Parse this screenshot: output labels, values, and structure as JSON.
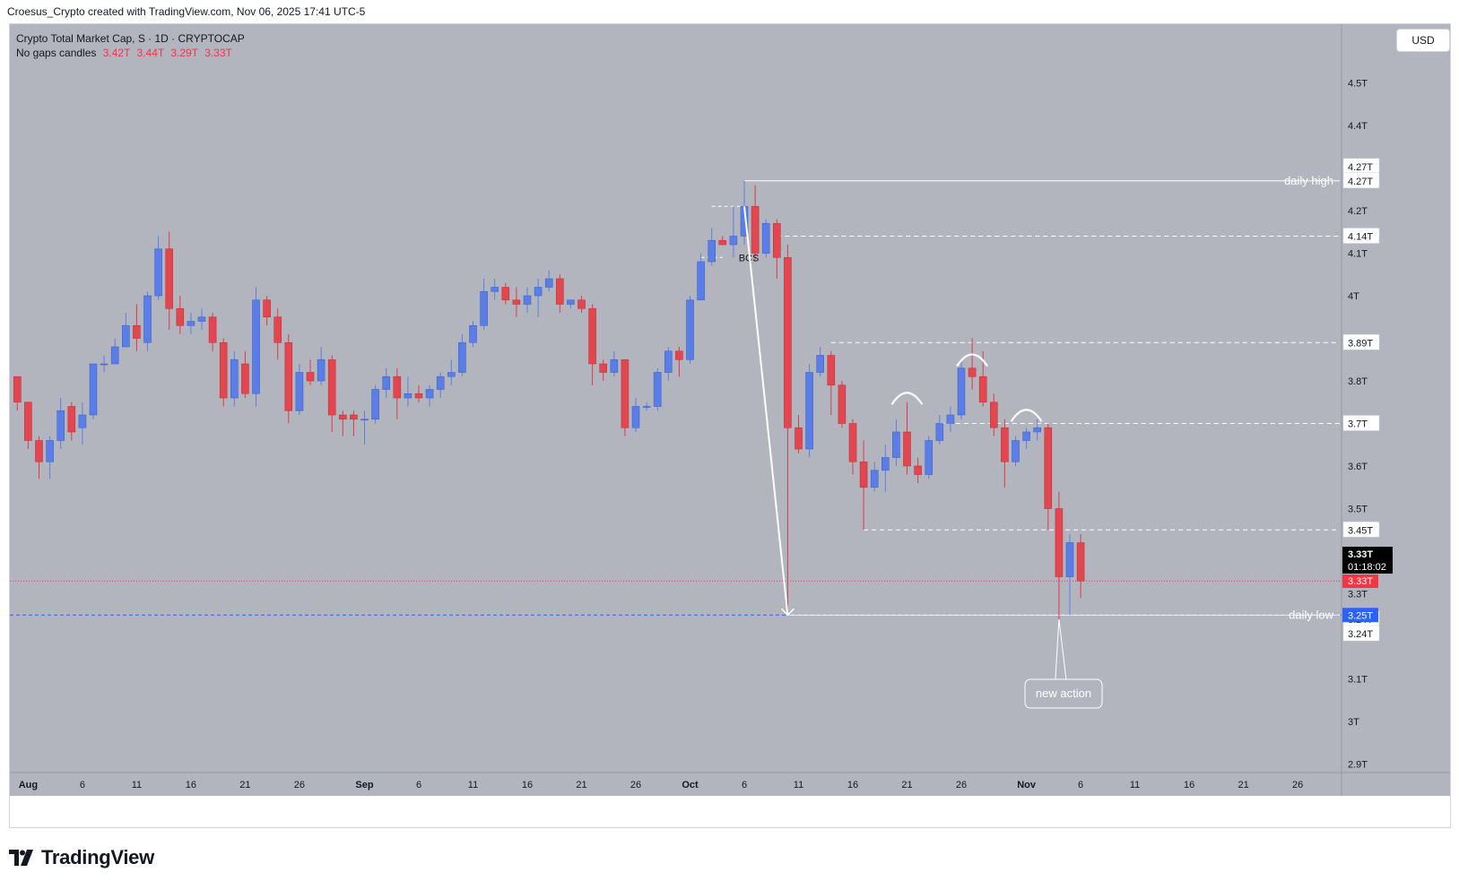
{
  "header": {
    "attribution": "Croesus_Crypto created with TradingView.com, Nov 06, 2025 17:41 UTC-5"
  },
  "symbol": {
    "title": "Crypto Total Market Cap, S · 1D · CRYPTOCAP",
    "indicator_name": "No gaps candles",
    "ohlc": [
      "3.42T",
      "3.44T",
      "3.29T",
      "3.33T"
    ]
  },
  "currency": "USD",
  "branding": "TradingView",
  "price_badges": {
    "last_price": "3.33T",
    "countdown": "01:18:02",
    "prev_close": "3.33T",
    "low_line": "3.25T"
  },
  "colors": {
    "background": "#b2b5be",
    "bullish": "#5b7ee6",
    "bearish": "#e2474f",
    "wick": "#e03a44",
    "annotation": "#ffffff",
    "last_price_badge": "#000000",
    "prev_close_badge": "#f23645",
    "low_line_badge": "#2962ff",
    "low_line": "#2962ff",
    "prev_close_line": "#f23645"
  },
  "chart_data": {
    "type": "candlestick",
    "title": "Crypto Total Market Cap, S · 1D · CRYPTOCAP",
    "unit": "T",
    "x_tick_labels": [
      "Aug",
      "6",
      "11",
      "16",
      "21",
      "26",
      "Sep",
      "6",
      "11",
      "16",
      "21",
      "26",
      "Oct",
      "6",
      "11",
      "16",
      "21",
      "26",
      "Nov",
      "6",
      "11",
      "16",
      "21",
      "26"
    ],
    "y_tick_labels": [
      "4.5T",
      "4.4T",
      "4.27T",
      "4.27T",
      "4.2T",
      "4.14T",
      "4.1T",
      "4T",
      "3.89T",
      "3.8T",
      "3.7T",
      "3.6T",
      "3.5T",
      "3.45T",
      "3.3T",
      "3.24T",
      "3.24T",
      "3.1T",
      "3T",
      "2.9T"
    ],
    "ylim": [
      2.89,
      4.62
    ],
    "candles": [
      {
        "date": "2025-07-31",
        "o": 3.81,
        "h": 3.81,
        "l": 3.73,
        "c": 3.75
      },
      {
        "date": "2025-08-01",
        "o": 3.75,
        "h": 3.75,
        "l": 3.64,
        "c": 3.66
      },
      {
        "date": "2025-08-02",
        "o": 3.66,
        "h": 3.67,
        "l": 3.57,
        "c": 3.61
      },
      {
        "date": "2025-08-03",
        "o": 3.61,
        "h": 3.67,
        "l": 3.57,
        "c": 3.66
      },
      {
        "date": "2025-08-04",
        "o": 3.66,
        "h": 3.76,
        "l": 3.64,
        "c": 3.73
      },
      {
        "date": "2025-08-05",
        "o": 3.74,
        "h": 3.75,
        "l": 3.66,
        "c": 3.68
      },
      {
        "date": "2025-08-06",
        "o": 3.69,
        "h": 3.75,
        "l": 3.65,
        "c": 3.72
      },
      {
        "date": "2025-08-07",
        "o": 3.72,
        "h": 3.84,
        "l": 3.71,
        "c": 3.84
      },
      {
        "date": "2025-08-08",
        "o": 3.84,
        "h": 3.86,
        "l": 3.82,
        "c": 3.84
      },
      {
        "date": "2025-08-09",
        "o": 3.84,
        "h": 3.9,
        "l": 3.84,
        "c": 3.88
      },
      {
        "date": "2025-08-10",
        "o": 3.88,
        "h": 3.96,
        "l": 3.88,
        "c": 3.93
      },
      {
        "date": "2025-08-11",
        "o": 3.93,
        "h": 3.98,
        "l": 3.87,
        "c": 3.9
      },
      {
        "date": "2025-08-12",
        "o": 3.89,
        "h": 4.01,
        "l": 3.87,
        "c": 4.0
      },
      {
        "date": "2025-08-13",
        "o": 4.0,
        "h": 4.14,
        "l": 3.99,
        "c": 4.11
      },
      {
        "date": "2025-08-14",
        "o": 4.11,
        "h": 4.15,
        "l": 3.92,
        "c": 3.97
      },
      {
        "date": "2025-08-15",
        "o": 3.97,
        "h": 4.0,
        "l": 3.91,
        "c": 3.93
      },
      {
        "date": "2025-08-16",
        "o": 3.93,
        "h": 3.96,
        "l": 3.91,
        "c": 3.94
      },
      {
        "date": "2025-08-17",
        "o": 3.94,
        "h": 3.97,
        "l": 3.92,
        "c": 3.95
      },
      {
        "date": "2025-08-18",
        "o": 3.95,
        "h": 3.96,
        "l": 3.87,
        "c": 3.89
      },
      {
        "date": "2025-08-19",
        "o": 3.89,
        "h": 3.9,
        "l": 3.74,
        "c": 3.76
      },
      {
        "date": "2025-08-20",
        "o": 3.76,
        "h": 3.87,
        "l": 3.74,
        "c": 3.85
      },
      {
        "date": "2025-08-21",
        "o": 3.84,
        "h": 3.87,
        "l": 3.76,
        "c": 3.77
      },
      {
        "date": "2025-08-22",
        "o": 3.77,
        "h": 4.02,
        "l": 3.74,
        "c": 3.99
      },
      {
        "date": "2025-08-23",
        "o": 3.99,
        "h": 4.0,
        "l": 3.93,
        "c": 3.95
      },
      {
        "date": "2025-08-24",
        "o": 3.95,
        "h": 3.97,
        "l": 3.85,
        "c": 3.89
      },
      {
        "date": "2025-08-25",
        "o": 3.89,
        "h": 3.91,
        "l": 3.7,
        "c": 3.73
      },
      {
        "date": "2025-08-26",
        "o": 3.73,
        "h": 3.84,
        "l": 3.72,
        "c": 3.82
      },
      {
        "date": "2025-08-27",
        "o": 3.82,
        "h": 3.85,
        "l": 3.79,
        "c": 3.8
      },
      {
        "date": "2025-08-28",
        "o": 3.8,
        "h": 3.88,
        "l": 3.79,
        "c": 3.85
      },
      {
        "date": "2025-08-29",
        "o": 3.85,
        "h": 3.86,
        "l": 3.68,
        "c": 3.72
      },
      {
        "date": "2025-08-30",
        "o": 3.72,
        "h": 3.73,
        "l": 3.67,
        "c": 3.71
      },
      {
        "date": "2025-08-31",
        "o": 3.72,
        "h": 3.73,
        "l": 3.67,
        "c": 3.71
      },
      {
        "date": "2025-09-01",
        "o": 3.71,
        "h": 3.73,
        "l": 3.65,
        "c": 3.71
      },
      {
        "date": "2025-09-02",
        "o": 3.71,
        "h": 3.79,
        "l": 3.7,
        "c": 3.78
      },
      {
        "date": "2025-09-03",
        "o": 3.78,
        "h": 3.83,
        "l": 3.76,
        "c": 3.81
      },
      {
        "date": "2025-09-04",
        "o": 3.81,
        "h": 3.83,
        "l": 3.71,
        "c": 3.76
      },
      {
        "date": "2025-09-05",
        "o": 3.76,
        "h": 3.81,
        "l": 3.74,
        "c": 3.77
      },
      {
        "date": "2025-09-06",
        "o": 3.77,
        "h": 3.79,
        "l": 3.75,
        "c": 3.76
      },
      {
        "date": "2025-09-07",
        "o": 3.76,
        "h": 3.79,
        "l": 3.74,
        "c": 3.78
      },
      {
        "date": "2025-09-08",
        "o": 3.78,
        "h": 3.82,
        "l": 3.76,
        "c": 3.81
      },
      {
        "date": "2025-09-09",
        "o": 3.81,
        "h": 3.85,
        "l": 3.79,
        "c": 3.82
      },
      {
        "date": "2025-09-10",
        "o": 3.82,
        "h": 3.91,
        "l": 3.81,
        "c": 3.89
      },
      {
        "date": "2025-09-11",
        "o": 3.89,
        "h": 3.94,
        "l": 3.88,
        "c": 3.93
      },
      {
        "date": "2025-09-12",
        "o": 3.93,
        "h": 4.04,
        "l": 3.92,
        "c": 4.01
      },
      {
        "date": "2025-09-13",
        "o": 4.01,
        "h": 4.04,
        "l": 3.99,
        "c": 4.02
      },
      {
        "date": "2025-09-14",
        "o": 4.02,
        "h": 4.03,
        "l": 3.98,
        "c": 3.99
      },
      {
        "date": "2025-09-15",
        "o": 3.99,
        "h": 4.02,
        "l": 3.95,
        "c": 3.98
      },
      {
        "date": "2025-09-16",
        "o": 3.98,
        "h": 4.02,
        "l": 3.96,
        "c": 4.0
      },
      {
        "date": "2025-09-17",
        "o": 4.0,
        "h": 4.04,
        "l": 3.95,
        "c": 4.02
      },
      {
        "date": "2025-09-18",
        "o": 4.02,
        "h": 4.06,
        "l": 4.01,
        "c": 4.04
      },
      {
        "date": "2025-09-19",
        "o": 4.04,
        "h": 4.05,
        "l": 3.96,
        "c": 3.98
      },
      {
        "date": "2025-09-20",
        "o": 3.98,
        "h": 3.99,
        "l": 3.97,
        "c": 3.99
      },
      {
        "date": "2025-09-21",
        "o": 3.99,
        "h": 4.0,
        "l": 3.96,
        "c": 3.97
      },
      {
        "date": "2025-09-22",
        "o": 3.97,
        "h": 3.98,
        "l": 3.79,
        "c": 3.84
      },
      {
        "date": "2025-09-23",
        "o": 3.84,
        "h": 3.85,
        "l": 3.8,
        "c": 3.82
      },
      {
        "date": "2025-09-24",
        "o": 3.82,
        "h": 3.87,
        "l": 3.81,
        "c": 3.85
      },
      {
        "date": "2025-09-25",
        "o": 3.85,
        "h": 3.85,
        "l": 3.67,
        "c": 3.69
      },
      {
        "date": "2025-09-26",
        "o": 3.69,
        "h": 3.76,
        "l": 3.68,
        "c": 3.74
      },
      {
        "date": "2025-09-27",
        "o": 3.74,
        "h": 3.75,
        "l": 3.73,
        "c": 3.74
      },
      {
        "date": "2025-09-28",
        "o": 3.74,
        "h": 3.83,
        "l": 3.73,
        "c": 3.82
      },
      {
        "date": "2025-09-29",
        "o": 3.82,
        "h": 3.88,
        "l": 3.8,
        "c": 3.87
      },
      {
        "date": "2025-09-30",
        "o": 3.87,
        "h": 3.88,
        "l": 3.81,
        "c": 3.85
      },
      {
        "date": "2025-10-01",
        "o": 3.85,
        "h": 4.0,
        "l": 3.84,
        "c": 3.99
      },
      {
        "date": "2025-10-02",
        "o": 3.99,
        "h": 4.1,
        "l": 3.99,
        "c": 4.08
      },
      {
        "date": "2025-10-03",
        "o": 4.08,
        "h": 4.16,
        "l": 4.07,
        "c": 4.13
      },
      {
        "date": "2025-10-04",
        "o": 4.13,
        "h": 4.14,
        "l": 4.12,
        "c": 4.12
      },
      {
        "date": "2025-10-05",
        "o": 4.12,
        "h": 4.21,
        "l": 4.09,
        "c": 4.14
      },
      {
        "date": "2025-10-06",
        "o": 4.14,
        "h": 4.27,
        "l": 4.12,
        "c": 4.21
      },
      {
        "date": "2025-10-07",
        "o": 4.21,
        "h": 4.26,
        "l": 4.08,
        "c": 4.1
      },
      {
        "date": "2025-10-08",
        "o": 4.1,
        "h": 4.18,
        "l": 4.09,
        "c": 4.17
      },
      {
        "date": "2025-10-09",
        "o": 4.17,
        "h": 4.18,
        "l": 4.04,
        "c": 4.09
      },
      {
        "date": "2025-10-10",
        "o": 4.09,
        "h": 4.12,
        "l": 3.25,
        "c": 3.69
      },
      {
        "date": "2025-10-11",
        "o": 3.69,
        "h": 3.72,
        "l": 3.63,
        "c": 3.64
      },
      {
        "date": "2025-10-12",
        "o": 3.64,
        "h": 3.84,
        "l": 3.62,
        "c": 3.82
      },
      {
        "date": "2025-10-13",
        "o": 3.82,
        "h": 3.88,
        "l": 3.81,
        "c": 3.86
      },
      {
        "date": "2025-10-14",
        "o": 3.86,
        "h": 3.87,
        "l": 3.72,
        "c": 3.79
      },
      {
        "date": "2025-10-15",
        "o": 3.79,
        "h": 3.8,
        "l": 3.69,
        "c": 3.7
      },
      {
        "date": "2025-10-16",
        "o": 3.7,
        "h": 3.71,
        "l": 3.58,
        "c": 3.61
      },
      {
        "date": "2025-10-17",
        "o": 3.61,
        "h": 3.66,
        "l": 3.45,
        "c": 3.55
      },
      {
        "date": "2025-10-18",
        "o": 3.55,
        "h": 3.61,
        "l": 3.54,
        "c": 3.59
      },
      {
        "date": "2025-10-19",
        "o": 3.59,
        "h": 3.65,
        "l": 3.54,
        "c": 3.62
      },
      {
        "date": "2025-10-20",
        "o": 3.62,
        "h": 3.71,
        "l": 3.6,
        "c": 3.68
      },
      {
        "date": "2025-10-21",
        "o": 3.68,
        "h": 3.75,
        "l": 3.58,
        "c": 3.6
      },
      {
        "date": "2025-10-22",
        "o": 3.6,
        "h": 3.62,
        "l": 3.56,
        "c": 3.58
      },
      {
        "date": "2025-10-23",
        "o": 3.58,
        "h": 3.67,
        "l": 3.57,
        "c": 3.66
      },
      {
        "date": "2025-10-24",
        "o": 3.66,
        "h": 3.72,
        "l": 3.65,
        "c": 3.7
      },
      {
        "date": "2025-10-25",
        "o": 3.7,
        "h": 3.74,
        "l": 3.68,
        "c": 3.72
      },
      {
        "date": "2025-10-26",
        "o": 3.72,
        "h": 3.85,
        "l": 3.71,
        "c": 3.83
      },
      {
        "date": "2025-10-27",
        "o": 3.83,
        "h": 3.9,
        "l": 3.78,
        "c": 3.81
      },
      {
        "date": "2025-10-28",
        "o": 3.81,
        "h": 3.87,
        "l": 3.74,
        "c": 3.75
      },
      {
        "date": "2025-10-29",
        "o": 3.75,
        "h": 3.77,
        "l": 3.67,
        "c": 3.69
      },
      {
        "date": "2025-10-30",
        "o": 3.69,
        "h": 3.71,
        "l": 3.55,
        "c": 3.61
      },
      {
        "date": "2025-10-31",
        "o": 3.61,
        "h": 3.67,
        "l": 3.6,
        "c": 3.66
      },
      {
        "date": "2025-11-01",
        "o": 3.66,
        "h": 3.69,
        "l": 3.64,
        "c": 3.68
      },
      {
        "date": "2025-11-02",
        "o": 3.68,
        "h": 3.71,
        "l": 3.66,
        "c": 3.69
      },
      {
        "date": "2025-11-03",
        "o": 3.69,
        "h": 3.7,
        "l": 3.45,
        "c": 3.5
      },
      {
        "date": "2025-11-04",
        "o": 3.5,
        "h": 3.54,
        "l": 3.24,
        "c": 3.34
      },
      {
        "date": "2025-11-05",
        "o": 3.34,
        "h": 3.44,
        "l": 3.25,
        "c": 3.42
      },
      {
        "date": "2025-11-06",
        "o": 3.42,
        "h": 3.44,
        "l": 3.29,
        "c": 3.33
      }
    ],
    "levels": [
      {
        "label": "daily high",
        "price": 4.27
      },
      {
        "price": 4.14
      },
      {
        "price": 3.89
      },
      {
        "price": 3.7
      },
      {
        "price": 3.45
      },
      {
        "label": "daily low",
        "price": 3.25
      }
    ],
    "annotations": {
      "bos_label": "BCS",
      "callout": "new action"
    }
  }
}
